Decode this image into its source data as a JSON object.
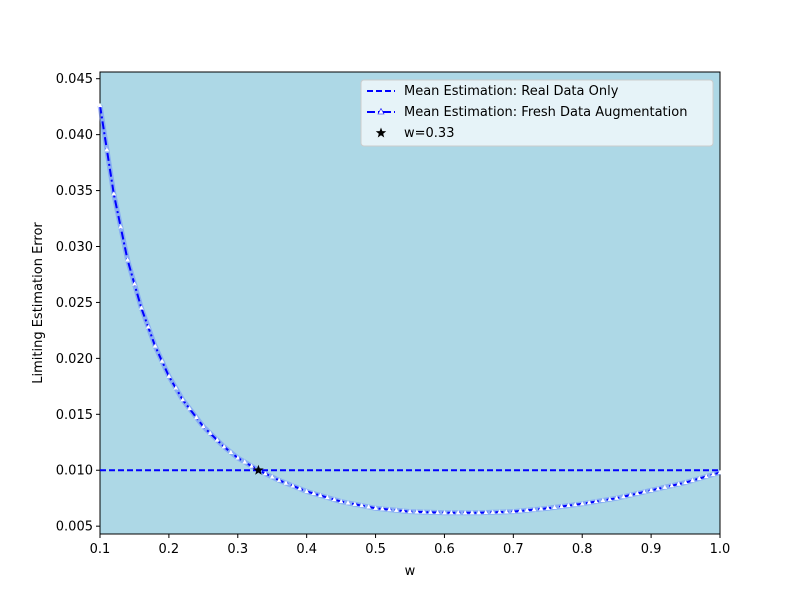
{
  "colors": {
    "plot_background": "#add8e6",
    "real_line": "#0000ff",
    "fresh_line": "#0000ff",
    "fresh_band": "#6b8cff",
    "marker_fill": "#ffffff",
    "star": "#000000",
    "legend_bg": "#f0f8fa"
  },
  "chart_data": {
    "type": "line",
    "xlabel": "w",
    "ylabel": "Limiting Estimation Error",
    "xlim": [
      0.1,
      1.0
    ],
    "ylim": [
      0.0043,
      0.0456
    ],
    "xticks": [
      0.1,
      0.2,
      0.3,
      0.4,
      0.5,
      0.6,
      0.7,
      0.8,
      0.9,
      1.0
    ],
    "xtick_labels": [
      "0.1",
      "0.2",
      "0.3",
      "0.4",
      "0.5",
      "0.6",
      "0.7",
      "0.8",
      "0.9",
      "1.0"
    ],
    "yticks": [
      0.005,
      0.01,
      0.015,
      0.02,
      0.025,
      0.03,
      0.035,
      0.04,
      0.045
    ],
    "ytick_labels": [
      "0.005",
      "0.010",
      "0.015",
      "0.020",
      "0.025",
      "0.030",
      "0.035",
      "0.040",
      "0.045"
    ],
    "grid": false,
    "legend_position": "upper right",
    "series": [
      {
        "name": "Mean Estimation: Real Data Only",
        "style": "dashed",
        "x": [
          0.1,
          1.0
        ],
        "y": [
          0.01,
          0.01
        ]
      },
      {
        "name": "Mean Estimation: Fresh Data Augmentation",
        "style": "dashdot-markers",
        "x": [
          0.1,
          0.12,
          0.14,
          0.16,
          0.18,
          0.2,
          0.22,
          0.25,
          0.28,
          0.3,
          0.33,
          0.36,
          0.4,
          0.45,
          0.5,
          0.55,
          0.6,
          0.65,
          0.7,
          0.75,
          0.8,
          0.85,
          0.9,
          0.95,
          1.0
        ],
        "y": [
          0.0426,
          0.0347,
          0.0288,
          0.0245,
          0.0211,
          0.0184,
          0.0163,
          0.0139,
          0.0121,
          0.0111,
          0.01,
          0.0091,
          0.0081,
          0.0072,
          0.0066,
          0.0063,
          0.0062,
          0.0062,
          0.0063,
          0.0066,
          0.007,
          0.0075,
          0.0082,
          0.0089,
          0.0098
        ]
      }
    ],
    "highlight_point": {
      "name": "w=0.33",
      "x": 0.33,
      "y": 0.01
    }
  }
}
